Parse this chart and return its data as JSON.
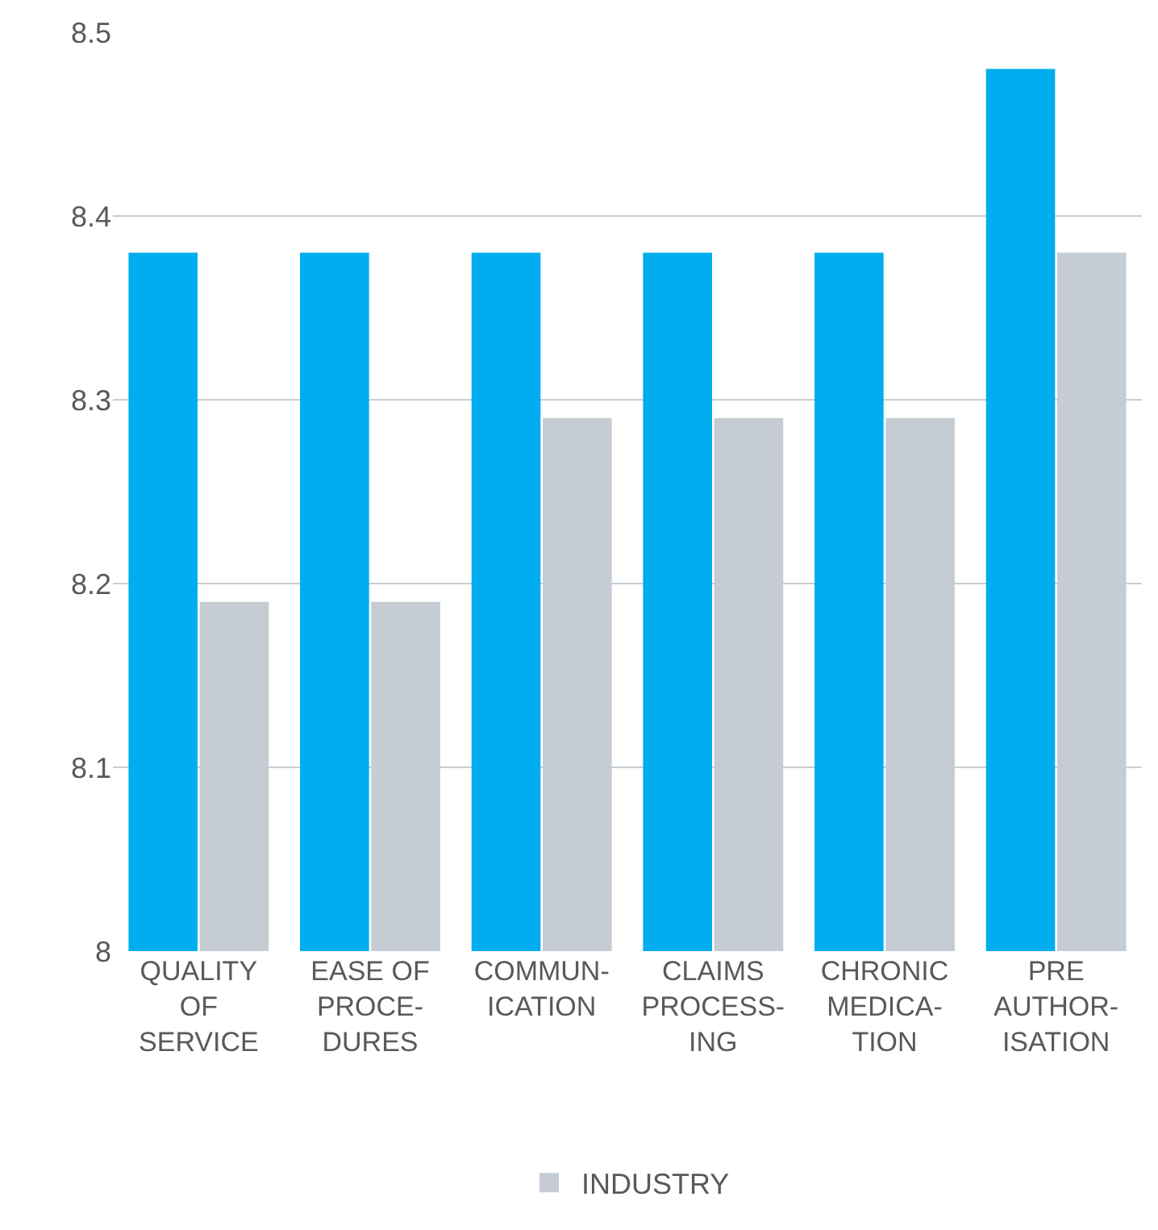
{
  "chart_data": {
    "type": "bar",
    "categories": [
      "QUALITY\nOF\nSERVICE",
      "EASE OF\nPROCE-\nDURES",
      "COMMUN-\nICATION",
      "CLAIMS\nPROCESS-\nING",
      "CHRONIC\nMEDICA-\nTION",
      "PRE\nAUTHOR-\nISATION"
    ],
    "series": [
      {
        "color": "#00aeef",
        "values": [
          8.38,
          8.38,
          8.38,
          8.38,
          8.38,
          8.48
        ]
      },
      {
        "name": "INDUSTRY",
        "color": "#c5ccd3",
        "values": [
          8.19,
          8.19,
          8.29,
          8.29,
          8.29,
          8.38
        ]
      }
    ],
    "ylim": [
      8,
      8.5
    ],
    "yticks": [
      8,
      8.1,
      8.2,
      8.3,
      8.4,
      8.5
    ],
    "grid": "y",
    "legend": "bottom"
  }
}
